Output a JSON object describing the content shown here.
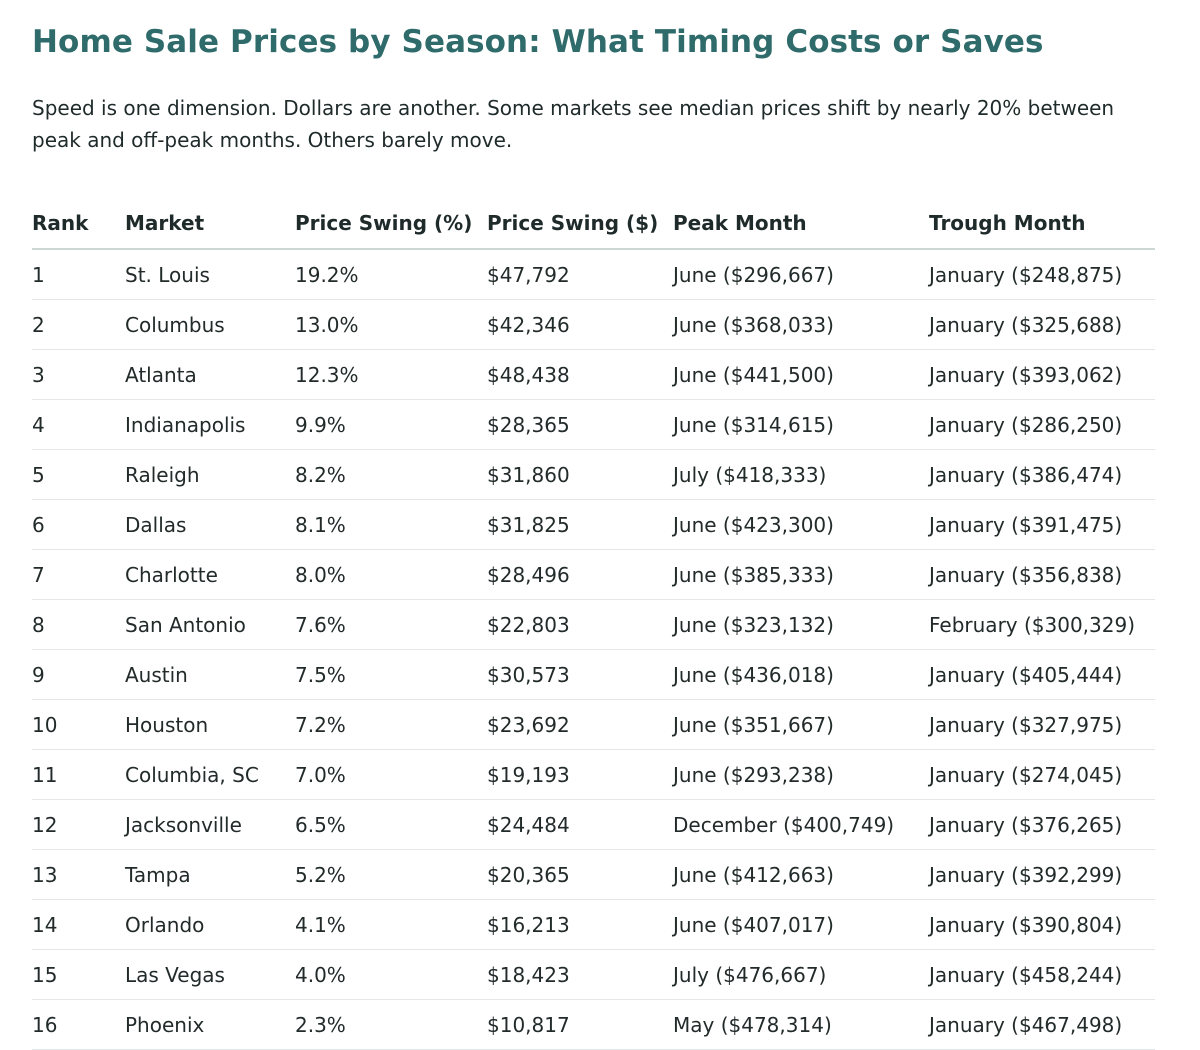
{
  "header": {
    "title": "Home Sale Prices by Season: What Timing Costs or Saves",
    "subtitle": "Speed is one dimension. Dollars are another. Some markets see median prices shift by nearly 20% between peak and off-peak months. Others barely move."
  },
  "colors": {
    "title": "#2f6b6b",
    "text": "#1f2a2a",
    "header_rule": "#cfd6d6",
    "row_rule": "#e3e7e7"
  },
  "table": {
    "columns": [
      "Rank",
      "Market",
      "Price Swing (%)",
      "Price Swing ($)",
      "Peak Month",
      "Trough Month"
    ],
    "rows": [
      [
        "1",
        "St. Louis",
        "19.2%",
        "$47,792",
        "June ($296,667)",
        "January ($248,875)"
      ],
      [
        "2",
        "Columbus",
        "13.0%",
        "$42,346",
        "June ($368,033)",
        "January ($325,688)"
      ],
      [
        "3",
        "Atlanta",
        "12.3%",
        "$48,438",
        "June ($441,500)",
        "January ($393,062)"
      ],
      [
        "4",
        "Indianapolis",
        "9.9%",
        "$28,365",
        "June ($314,615)",
        "January ($286,250)"
      ],
      [
        "5",
        "Raleigh",
        "8.2%",
        "$31,860",
        "July ($418,333)",
        "January ($386,474)"
      ],
      [
        "6",
        "Dallas",
        "8.1%",
        "$31,825",
        "June ($423,300)",
        "January ($391,475)"
      ],
      [
        "7",
        "Charlotte",
        "8.0%",
        "$28,496",
        "June ($385,333)",
        "January ($356,838)"
      ],
      [
        "8",
        "San Antonio",
        "7.6%",
        "$22,803",
        "June ($323,132)",
        "February ($300,329)"
      ],
      [
        "9",
        "Austin",
        "7.5%",
        "$30,573",
        "June ($436,018)",
        "January ($405,444)"
      ],
      [
        "10",
        "Houston",
        "7.2%",
        "$23,692",
        "June ($351,667)",
        "January ($327,975)"
      ],
      [
        "11",
        "Columbia, SC",
        "7.0%",
        "$19,193",
        "June ($293,238)",
        "January ($274,045)"
      ],
      [
        "12",
        "Jacksonville",
        "6.5%",
        "$24,484",
        "December ($400,749)",
        "January ($376,265)"
      ],
      [
        "13",
        "Tampa",
        "5.2%",
        "$20,365",
        "June ($412,663)",
        "January ($392,299)"
      ],
      [
        "14",
        "Orlando",
        "4.1%",
        "$16,213",
        "June ($407,017)",
        "January ($390,804)"
      ],
      [
        "15",
        "Las Vegas",
        "4.0%",
        "$18,423",
        "July ($476,667)",
        "January ($458,244)"
      ],
      [
        "16",
        "Phoenix",
        "2.3%",
        "$10,817",
        "May ($478,314)",
        "January ($467,498)"
      ]
    ]
  }
}
